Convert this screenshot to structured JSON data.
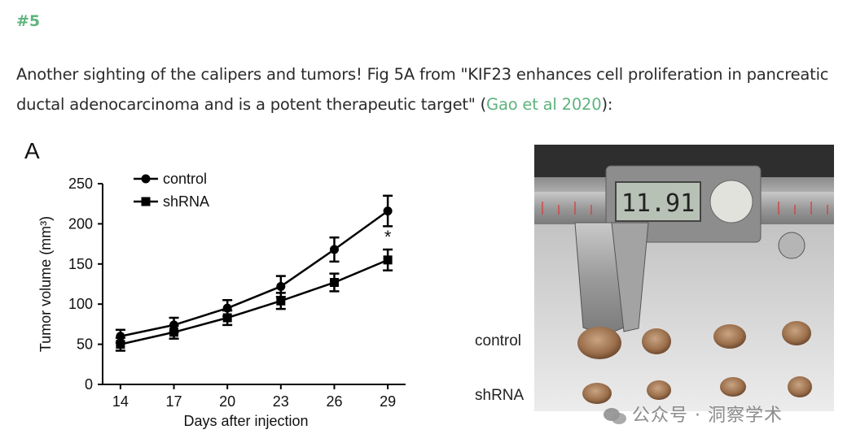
{
  "post": {
    "heading": "#5",
    "intro_text": "Another sighting of the calipers and tumors! Fig 5A from \"KIF23 enhances cell proliferation in pancreatic ductal adenocarcinoma and is a potent therapeutic target\" (",
    "link_text": "Gao et al 2020",
    "outro_text": "):"
  },
  "figure": {
    "panel_letter": "A",
    "photo_labels": {
      "top": "control",
      "bottom": "shRNA"
    },
    "caliper_readout": "11.91",
    "watermark_text": "公众号 · 洞察学术"
  },
  "colors": {
    "link": "#5fb37e",
    "heading": "#5fb37e",
    "series": "#000000"
  },
  "chart_data": {
    "type": "line",
    "x": [
      14,
      17,
      20,
      23,
      26,
      29
    ],
    "xlabel": "Days after injection",
    "ylabel": "Tumor volume (mm³)",
    "ylim": [
      0,
      250
    ],
    "yticks": [
      0,
      50,
      100,
      150,
      200,
      250
    ],
    "legend_position": "top-left",
    "grid": false,
    "series": [
      {
        "name": "control",
        "marker": "circle",
        "values": [
          60,
          74,
          95,
          122,
          168,
          216
        ],
        "errors": [
          8,
          9,
          10,
          13,
          15,
          19
        ]
      },
      {
        "name": "shRNA",
        "marker": "square",
        "values": [
          50,
          65,
          83,
          104,
          127,
          155
        ],
        "errors": [
          8,
          8,
          9,
          10,
          11,
          13
        ]
      }
    ],
    "annotations": [
      {
        "x": 29,
        "text": "*"
      }
    ]
  }
}
